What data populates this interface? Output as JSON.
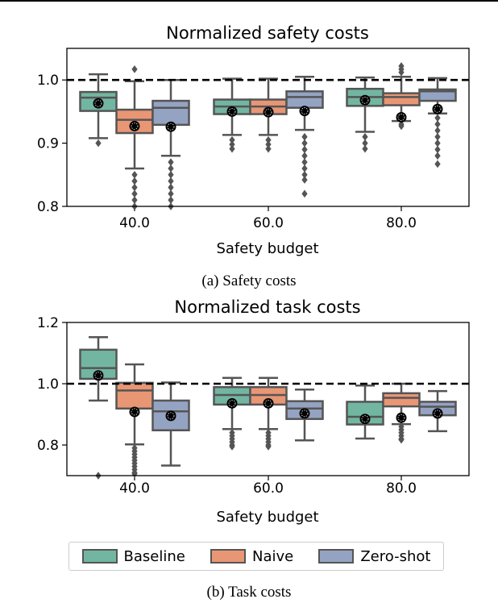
{
  "colors": {
    "Baseline": "#72b6a1",
    "Naive": "#e99675",
    "Zero-shot": "#95a3c3",
    "edge": "#555555",
    "reference_line": "#000000"
  },
  "legend": {
    "placement": "bottom",
    "items": [
      "Baseline",
      "Naive",
      "Zero-shot"
    ]
  },
  "captions": {
    "a": "(a) Safety costs",
    "b": "(b) Task costs"
  },
  "chart_data": [
    {
      "type": "box",
      "title": "Normalized safety costs",
      "xlabel": "Safety budget",
      "ylabel": "",
      "categories": [
        "40.0",
        "60.0",
        "80.0"
      ],
      "ylim": [
        0.8,
        1.05
      ],
      "yticks": [
        "0.8",
        "0.9",
        "1.0"
      ],
      "yticks_values": [
        0.8,
        0.9,
        1.0
      ],
      "reference_line": 1.0,
      "grid": false,
      "series": [
        {
          "name": "Baseline",
          "boxes": [
            {
              "whislo": 0.908,
              "q1": 0.951,
              "med": 0.972,
              "q3": 0.981,
              "whishi": 1.009,
              "mean": 0.963,
              "outliers": [
                0.9
              ]
            },
            {
              "whislo": 0.913,
              "q1": 0.946,
              "med": 0.958,
              "q3": 0.969,
              "whishi": 1.002,
              "mean": 0.95,
              "outliers": [
                0.905,
                0.898,
                0.891
              ]
            },
            {
              "whislo": 0.918,
              "q1": 0.959,
              "med": 0.973,
              "q3": 0.986,
              "whishi": 1.004,
              "mean": 0.968,
              "outliers": [
                0.91,
                0.9,
                0.891
              ]
            }
          ]
        },
        {
          "name": "Naive",
          "boxes": [
            {
              "whislo": 0.86,
              "q1": 0.916,
              "med": 0.937,
              "q3": 0.953,
              "whishi": 0.998,
              "mean": 0.927,
              "outliers": [
                1.017,
                0.85,
                0.84,
                0.83,
                0.82,
                0.81,
                0.8
              ]
            },
            {
              "whislo": 0.913,
              "q1": 0.946,
              "med": 0.958,
              "q3": 0.969,
              "whishi": 1.002,
              "mean": 0.949,
              "outliers": [
                0.905,
                0.898,
                0.891
              ]
            },
            {
              "whislo": 0.935,
              "q1": 0.96,
              "med": 0.973,
              "q3": 0.979,
              "whishi": 1.005,
              "mean": 0.941,
              "outliers": [
                1.012,
                1.017,
                1.022,
                0.93,
                0.927
              ]
            }
          ]
        },
        {
          "name": "Zero-shot",
          "boxes": [
            {
              "whislo": 0.88,
              "q1": 0.929,
              "med": 0.956,
              "q3": 0.967,
              "whishi": 1.0,
              "mean": 0.926,
              "outliers": [
                0.87,
                0.86,
                0.85,
                0.84,
                0.83,
                0.82,
                0.81,
                0.8
              ]
            },
            {
              "whislo": 0.921,
              "q1": 0.956,
              "med": 0.973,
              "q3": 0.982,
              "whishi": 1.005,
              "mean": 0.951,
              "outliers": [
                0.91,
                0.9,
                0.89,
                0.88,
                0.87,
                0.86,
                0.85,
                0.842,
                0.82
              ]
            },
            {
              "whislo": 0.947,
              "q1": 0.967,
              "med": 0.982,
              "q3": 0.985,
              "whishi": 1.003,
              "mean": 0.954,
              "outliers": [
                0.94,
                0.93,
                0.92,
                0.91,
                0.9,
                0.89,
                0.88,
                0.867
              ]
            }
          ]
        }
      ]
    },
    {
      "type": "box",
      "title": "Normalized task costs",
      "xlabel": "Safety budget",
      "ylabel": "",
      "categories": [
        "40.0",
        "60.0",
        "80.0"
      ],
      "ylim": [
        0.7,
        1.2
      ],
      "yticks": [
        "0.8",
        "1.0",
        "1.2"
      ],
      "yticks_values": [
        0.8,
        1.0,
        1.2
      ],
      "reference_line": 1.0,
      "grid": false,
      "series": [
        {
          "name": "Baseline",
          "boxes": [
            {
              "whislo": 0.945,
              "q1": 1.016,
              "med": 1.051,
              "q3": 1.111,
              "whishi": 1.152,
              "mean": 1.027,
              "outliers": [
                0.7
              ]
            },
            {
              "whislo": 0.852,
              "q1": 0.932,
              "med": 0.963,
              "q3": 0.989,
              "whishi": 1.019,
              "mean": 0.936,
              "outliers": [
                0.84,
                0.83,
                0.82,
                0.81,
                0.8,
                0.795
              ]
            },
            {
              "whislo": 0.821,
              "q1": 0.867,
              "med": 0.892,
              "q3": 0.941,
              "whishi": 0.994,
              "mean": 0.885,
              "outliers": []
            }
          ]
        },
        {
          "name": "Naive",
          "boxes": [
            {
              "whislo": 0.802,
              "q1": 0.919,
              "med": 0.978,
              "q3": 1.003,
              "whishi": 1.063,
              "mean": 0.908,
              "outliers": [
                0.79,
                0.78,
                0.77,
                0.76,
                0.75,
                0.74,
                0.73,
                0.72,
                0.71,
                0.706
              ]
            },
            {
              "whislo": 0.852,
              "q1": 0.932,
              "med": 0.963,
              "q3": 0.989,
              "whishi": 1.019,
              "mean": 0.936,
              "outliers": [
                0.84,
                0.83,
                0.82,
                0.81,
                0.8,
                0.795
              ]
            },
            {
              "whislo": 0.868,
              "q1": 0.926,
              "med": 0.954,
              "q3": 0.969,
              "whishi": 1.0,
              "mean": 0.889,
              "outliers": [
                0.86,
                0.85,
                0.84,
                0.83,
                0.82,
                0.817
              ]
            }
          ]
        },
        {
          "name": "Zero-shot",
          "boxes": [
            {
              "whislo": 0.733,
              "q1": 0.848,
              "med": 0.91,
              "q3": 0.945,
              "whishi": 1.004,
              "mean": 0.895,
              "outliers": []
            },
            {
              "whislo": 0.815,
              "q1": 0.885,
              "med": 0.919,
              "q3": 0.943,
              "whishi": 0.981,
              "mean": 0.903,
              "outliers": []
            },
            {
              "whislo": 0.845,
              "q1": 0.897,
              "med": 0.925,
              "q3": 0.941,
              "whishi": 0.976,
              "mean": 0.903,
              "outliers": []
            }
          ]
        }
      ]
    }
  ]
}
